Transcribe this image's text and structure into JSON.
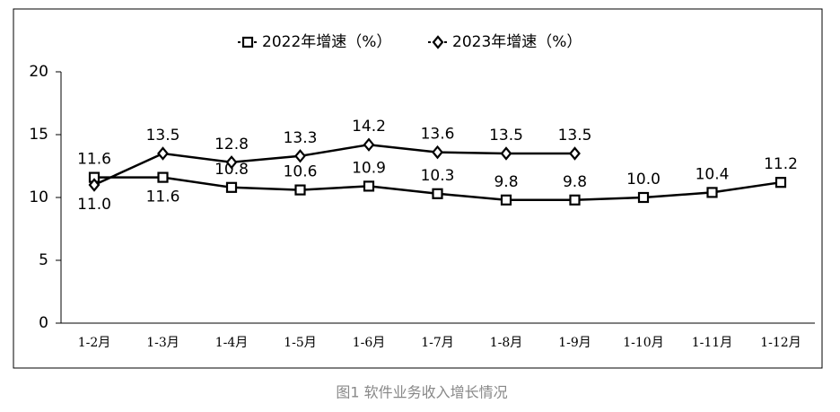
{
  "chart_data": {
    "type": "line",
    "categories": [
      "1-2月",
      "1-3月",
      "1-4月",
      "1-5月",
      "1-6月",
      "1-7月",
      "1-8月",
      "1-9月",
      "1-10月",
      "1-11月",
      "1-12月"
    ],
    "series": [
      {
        "name": "2022年增速（%）",
        "color": "#000000",
        "marker": "square",
        "values": [
          11.6,
          11.6,
          10.8,
          10.6,
          10.9,
          10.3,
          9.8,
          9.8,
          10.0,
          10.4,
          11.2
        ],
        "value_labels": [
          "11.6",
          "11.6",
          "10.8",
          "10.6",
          "10.9",
          "10.3",
          "9.8",
          "9.8",
          "10.0",
          "10.4",
          "11.2"
        ]
      },
      {
        "name": "2023年增速（%）",
        "color": "#000000",
        "marker": "diamond",
        "values": [
          11.0,
          13.5,
          12.8,
          13.3,
          14.2,
          13.6,
          13.5,
          13.5,
          null,
          null,
          null
        ],
        "value_labels": [
          "11.0",
          "13.5",
          "12.8",
          "13.3",
          "14.2",
          "13.6",
          "13.5",
          "13.5",
          null,
          null,
          null
        ]
      }
    ],
    "ylim": [
      0,
      20
    ],
    "yticks": [
      0,
      5,
      10,
      15,
      20
    ],
    "grid": false,
    "legend": "top",
    "caption": "图1  软件业务收入增长情况"
  }
}
